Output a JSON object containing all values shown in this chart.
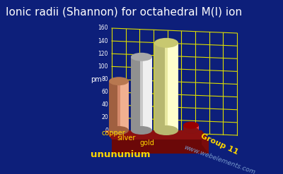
{
  "title": "Ionic radii (Shannon) for octahedral M(I) ion",
  "background_color": "#0d1f7a",
  "title_color": "white",
  "ylabel": "pm",
  "elements": [
    "copper",
    "silver",
    "gold",
    "unununium"
  ],
  "values": [
    77,
    115,
    137,
    8
  ],
  "bar_colors_main": [
    "#D4896A",
    "#C8C8C8",
    "#E8E8A0",
    "#CC1111"
  ],
  "bar_colors_light": [
    "#F0B090",
    "#EFEFEF",
    "#FFFFCC",
    "#FF4444"
  ],
  "bar_colors_dark": [
    "#A06040",
    "#909090",
    "#B8B870",
    "#881111"
  ],
  "bar_colors_top": [
    "#B87850",
    "#A8A8A8",
    "#C8C870",
    "#990000"
  ],
  "ylim": [
    0,
    160
  ],
  "yticks": [
    0,
    20,
    40,
    60,
    80,
    100,
    120,
    140,
    160
  ],
  "grid_color": "#DDDD00",
  "label_color": "#FFD700",
  "watermark": "www.webelements.com",
  "group_label": "Group 11",
  "title_fontsize": 11,
  "label_fontsize": 8,
  "base_color_top": "#8B1010",
  "base_color_front": "#6B0808",
  "base_color_right": "#7B0C0C"
}
